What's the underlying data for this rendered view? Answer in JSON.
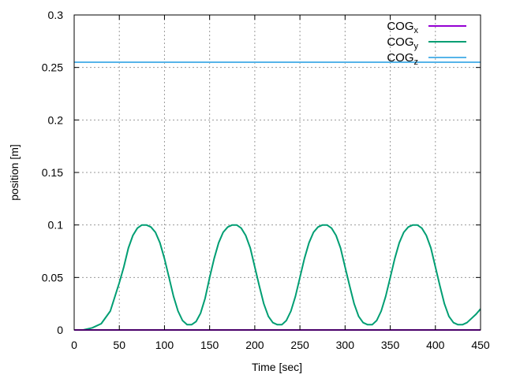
{
  "chart_data": {
    "type": "line",
    "xlabel": "Time [sec]",
    "ylabel": "position [m]",
    "xlim": [
      0,
      450
    ],
    "ylim": [
      0,
      0.3
    ],
    "xticks": [
      0,
      50,
      100,
      150,
      200,
      250,
      300,
      350,
      400,
      450
    ],
    "yticks": [
      0,
      0.05,
      0.1,
      0.15,
      0.2,
      0.25,
      0.3
    ],
    "xtick_labels": [
      "0",
      "50",
      "100",
      "150",
      "200",
      "250",
      "300",
      "350",
      "400",
      "450"
    ],
    "ytick_labels": [
      "0",
      "0.05",
      "0.1",
      "0.15",
      "0.2",
      "0.25",
      "0.3"
    ],
    "grid": true,
    "legend_position": "top-right",
    "series": [
      {
        "name": "COG",
        "subscript": "x",
        "color": "#9400d3",
        "x": [
          0,
          450
        ],
        "y": [
          0,
          0
        ]
      },
      {
        "name": "COG",
        "subscript": "y",
        "color": "#009e73",
        "x": [
          10,
          20,
          30,
          40,
          50,
          55,
          60,
          65,
          70,
          75,
          80,
          85,
          90,
          95,
          100,
          105,
          110,
          115,
          120,
          125,
          130,
          135,
          140,
          145,
          150,
          155,
          160,
          165,
          170,
          175,
          180,
          185,
          190,
          195,
          200,
          205,
          210,
          215,
          220,
          225,
          230,
          235,
          240,
          245,
          250,
          255,
          260,
          265,
          270,
          275,
          280,
          285,
          290,
          295,
          300,
          305,
          310,
          315,
          320,
          325,
          330,
          335,
          340,
          345,
          350,
          355,
          360,
          365,
          370,
          375,
          380,
          385,
          390,
          395,
          400,
          405,
          410,
          415,
          420,
          425,
          430,
          435,
          440,
          445,
          450
        ],
        "y": [
          0.0,
          0.002,
          0.006,
          0.018,
          0.045,
          0.06,
          0.078,
          0.09,
          0.097,
          0.1,
          0.1,
          0.098,
          0.093,
          0.083,
          0.068,
          0.05,
          0.032,
          0.018,
          0.009,
          0.005,
          0.005,
          0.008,
          0.016,
          0.03,
          0.05,
          0.068,
          0.083,
          0.093,
          0.098,
          0.1,
          0.1,
          0.097,
          0.09,
          0.078,
          0.06,
          0.042,
          0.025,
          0.013,
          0.007,
          0.005,
          0.005,
          0.009,
          0.018,
          0.032,
          0.05,
          0.068,
          0.083,
          0.093,
          0.098,
          0.1,
          0.1,
          0.097,
          0.09,
          0.078,
          0.06,
          0.042,
          0.025,
          0.013,
          0.007,
          0.005,
          0.005,
          0.009,
          0.018,
          0.032,
          0.05,
          0.068,
          0.083,
          0.093,
          0.098,
          0.1,
          0.1,
          0.097,
          0.09,
          0.078,
          0.06,
          0.042,
          0.025,
          0.013,
          0.007,
          0.005,
          0.005,
          0.007,
          0.011,
          0.015,
          0.02
        ]
      },
      {
        "name": "COG",
        "subscript": "z",
        "color": "#56b4e9",
        "x": [
          0,
          450
        ],
        "y": [
          0.255,
          0.255
        ]
      }
    ]
  }
}
